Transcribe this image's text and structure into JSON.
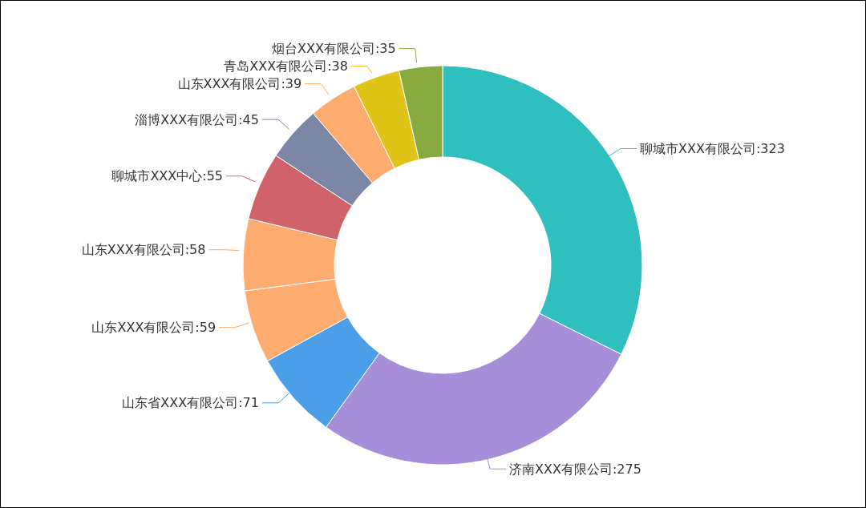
{
  "chart_data": {
    "type": "donut",
    "categories": [
      "聊城市XXX有限公司",
      "济南XXX有限公司",
      "山东省XXX有限公司",
      "山东XXX有限公司",
      "山东XXX有限公司",
      "聊城市XXX中心",
      "淄博XXX有限公司",
      "山东XXX有限公司",
      "青岛XXX有限公司",
      "烟台XXX有限公司"
    ],
    "values": [
      323,
      275,
      71,
      59,
      58,
      55,
      45,
      39,
      38,
      35
    ],
    "value_labels": [
      ":323",
      ":275",
      ":71",
      ":59",
      ":58",
      ":55",
      ":45",
      ":39",
      ":38",
      ":35"
    ],
    "colors": [
      "#2ebfbe",
      "#a68fd8",
      "#4a9fe8",
      "#fdab6e",
      "#fdab6e",
      "#d0626b",
      "#7b87a4",
      "#fdab6e",
      "#e0c418",
      "#88aa3f"
    ]
  }
}
